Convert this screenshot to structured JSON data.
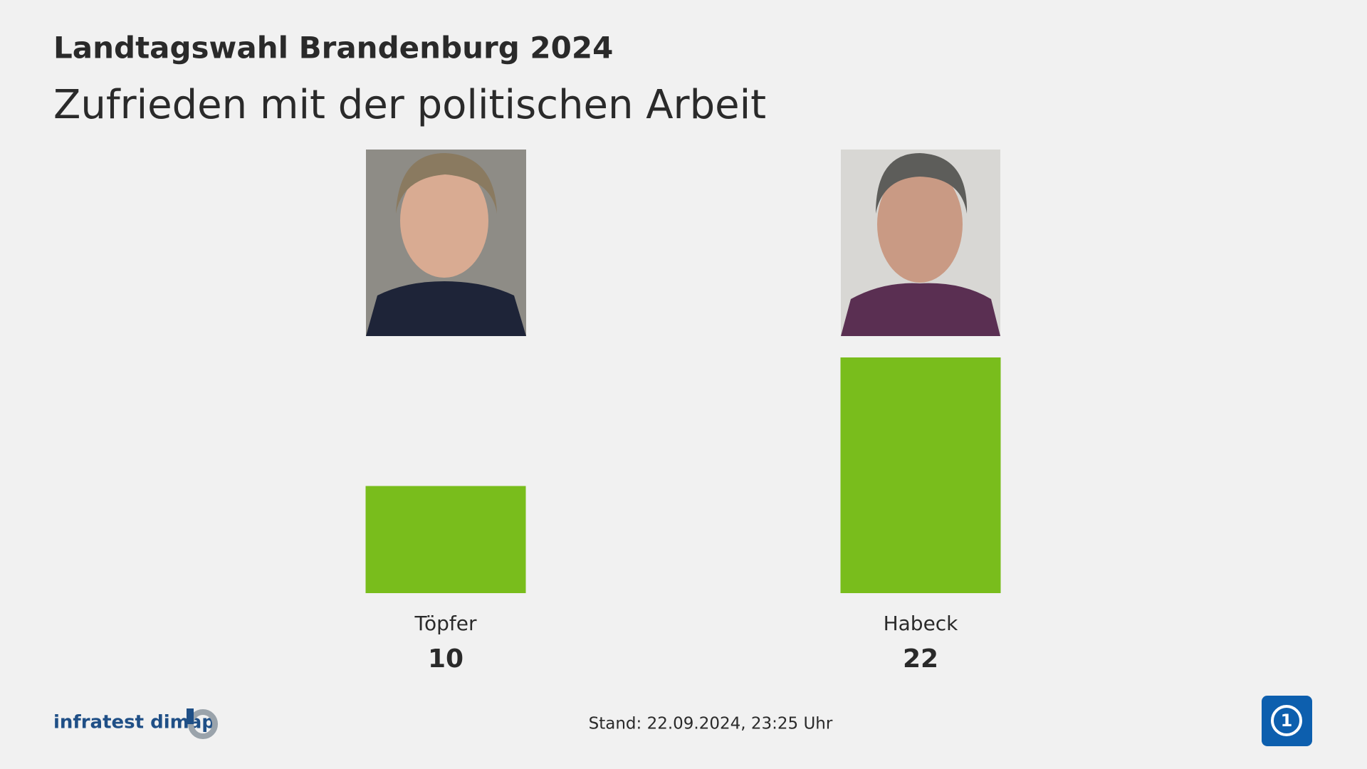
{
  "chart_data": {
    "type": "bar",
    "title": "Landtagswahl Brandenburg 2024",
    "subtitle": "Zufrieden mit der politischen Arbeit",
    "categories": [
      "Töpfer",
      "Habeck"
    ],
    "values": [
      10,
      22
    ],
    "color": "#79bd1c",
    "footer": "Stand:  22.09.2024, 23:25 Uhr",
    "source": "infratest dimap"
  }
}
